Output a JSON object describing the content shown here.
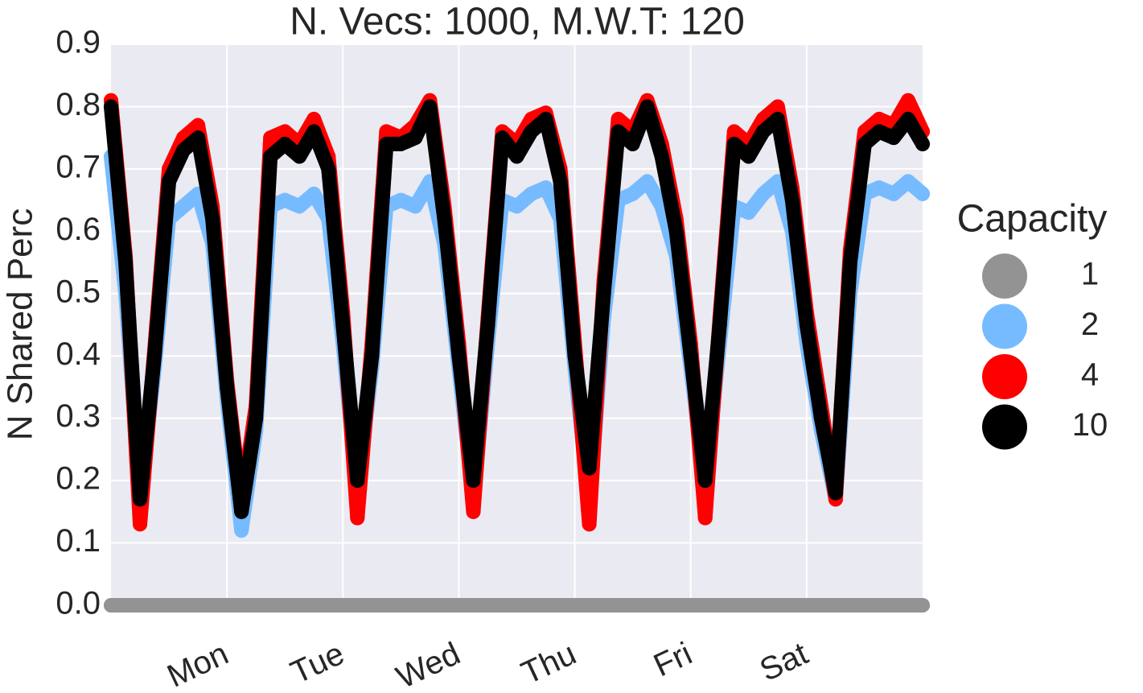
{
  "chart_data": {
    "type": "scatter",
    "title": "N. Vecs: 1000, M.W.T: 120",
    "y_label": "N Shared Perc",
    "legend_title": "Capacity",
    "legend_position": "right",
    "grid": true,
    "xlim": [
      0,
      7
    ],
    "ylim": [
      0,
      0.9
    ],
    "xticks": [
      {
        "value": 1,
        "label": "Mon"
      },
      {
        "value": 2,
        "label": "Tue"
      },
      {
        "value": 3,
        "label": "Wed"
      },
      {
        "value": 4,
        "label": "Thu"
      },
      {
        "value": 5,
        "label": "Fri"
      },
      {
        "value": 6,
        "label": "Sat"
      }
    ],
    "yticks": [
      {
        "value": 0,
        "label": "0.0"
      },
      0.1,
      0.2,
      0.3,
      0.4,
      0.5,
      0.6,
      0.7,
      0.8,
      0.9
    ],
    "x": [
      0,
      0.125,
      0.25,
      0.375,
      0.5,
      0.625,
      0.75,
      0.875,
      1,
      1.125,
      1.25,
      1.375,
      1.5,
      1.625,
      1.75,
      1.875,
      2,
      2.125,
      2.25,
      2.375,
      2.5,
      2.625,
      2.75,
      2.875,
      3,
      3.125,
      3.25,
      3.375,
      3.5,
      3.625,
      3.75,
      3.875,
      4,
      4.125,
      4.25,
      4.375,
      4.5,
      4.625,
      4.75,
      4.875,
      5,
      5.125,
      5.25,
      5.375,
      5.5,
      5.625,
      5.75,
      5.875,
      6,
      6.125,
      6.25,
      6.375,
      6.5,
      6.625,
      6.75,
      6.875,
      7
    ],
    "series": [
      {
        "name": "1",
        "color": "#939393",
        "values": [
          0,
          0,
          0,
          0,
          0,
          0,
          0,
          0,
          0,
          0,
          0,
          0,
          0,
          0,
          0,
          0,
          0,
          0,
          0,
          0,
          0,
          0,
          0,
          0,
          0,
          0,
          0,
          0,
          0,
          0,
          0,
          0,
          0,
          0,
          0,
          0,
          0,
          0,
          0,
          0,
          0,
          0,
          0,
          0,
          0,
          0,
          0,
          0,
          0,
          0,
          0,
          0,
          0,
          0,
          0,
          0,
          0
        ]
      },
      {
        "name": "2",
        "color": "#76bbff",
        "values": [
          0.72,
          0.5,
          0.17,
          0.38,
          0.62,
          0.64,
          0.66,
          0.58,
          0.33,
          0.12,
          0.28,
          0.64,
          0.65,
          0.64,
          0.66,
          0.62,
          0.42,
          0.18,
          0.38,
          0.64,
          0.65,
          0.64,
          0.68,
          0.58,
          0.38,
          0.17,
          0.42,
          0.65,
          0.64,
          0.66,
          0.67,
          0.62,
          0.38,
          0.16,
          0.46,
          0.65,
          0.66,
          0.68,
          0.64,
          0.56,
          0.38,
          0.19,
          0.42,
          0.64,
          0.63,
          0.66,
          0.68,
          0.6,
          0.42,
          0.28,
          0.17,
          0.5,
          0.66,
          0.67,
          0.66,
          0.68,
          0.66
        ]
      },
      {
        "name": "4",
        "color": "#ff0000",
        "values": [
          0.81,
          0.56,
          0.13,
          0.41,
          0.7,
          0.75,
          0.77,
          0.64,
          0.36,
          0.16,
          0.32,
          0.75,
          0.76,
          0.74,
          0.78,
          0.72,
          0.47,
          0.14,
          0.42,
          0.76,
          0.75,
          0.77,
          0.81,
          0.64,
          0.42,
          0.15,
          0.46,
          0.76,
          0.74,
          0.78,
          0.79,
          0.7,
          0.42,
          0.13,
          0.52,
          0.78,
          0.76,
          0.81,
          0.74,
          0.62,
          0.42,
          0.14,
          0.46,
          0.76,
          0.74,
          0.78,
          0.8,
          0.67,
          0.47,
          0.32,
          0.17,
          0.57,
          0.76,
          0.78,
          0.77,
          0.81,
          0.76
        ]
      },
      {
        "name": "10",
        "color": "#000000",
        "values": [
          0.8,
          0.55,
          0.17,
          0.4,
          0.68,
          0.73,
          0.75,
          0.62,
          0.35,
          0.15,
          0.3,
          0.72,
          0.74,
          0.72,
          0.76,
          0.7,
          0.45,
          0.2,
          0.4,
          0.74,
          0.74,
          0.75,
          0.8,
          0.62,
          0.4,
          0.2,
          0.45,
          0.75,
          0.72,
          0.76,
          0.78,
          0.68,
          0.4,
          0.22,
          0.5,
          0.76,
          0.74,
          0.8,
          0.72,
          0.6,
          0.4,
          0.2,
          0.45,
          0.74,
          0.72,
          0.76,
          0.78,
          0.65,
          0.45,
          0.3,
          0.18,
          0.55,
          0.74,
          0.76,
          0.75,
          0.78,
          0.74
        ]
      }
    ]
  }
}
